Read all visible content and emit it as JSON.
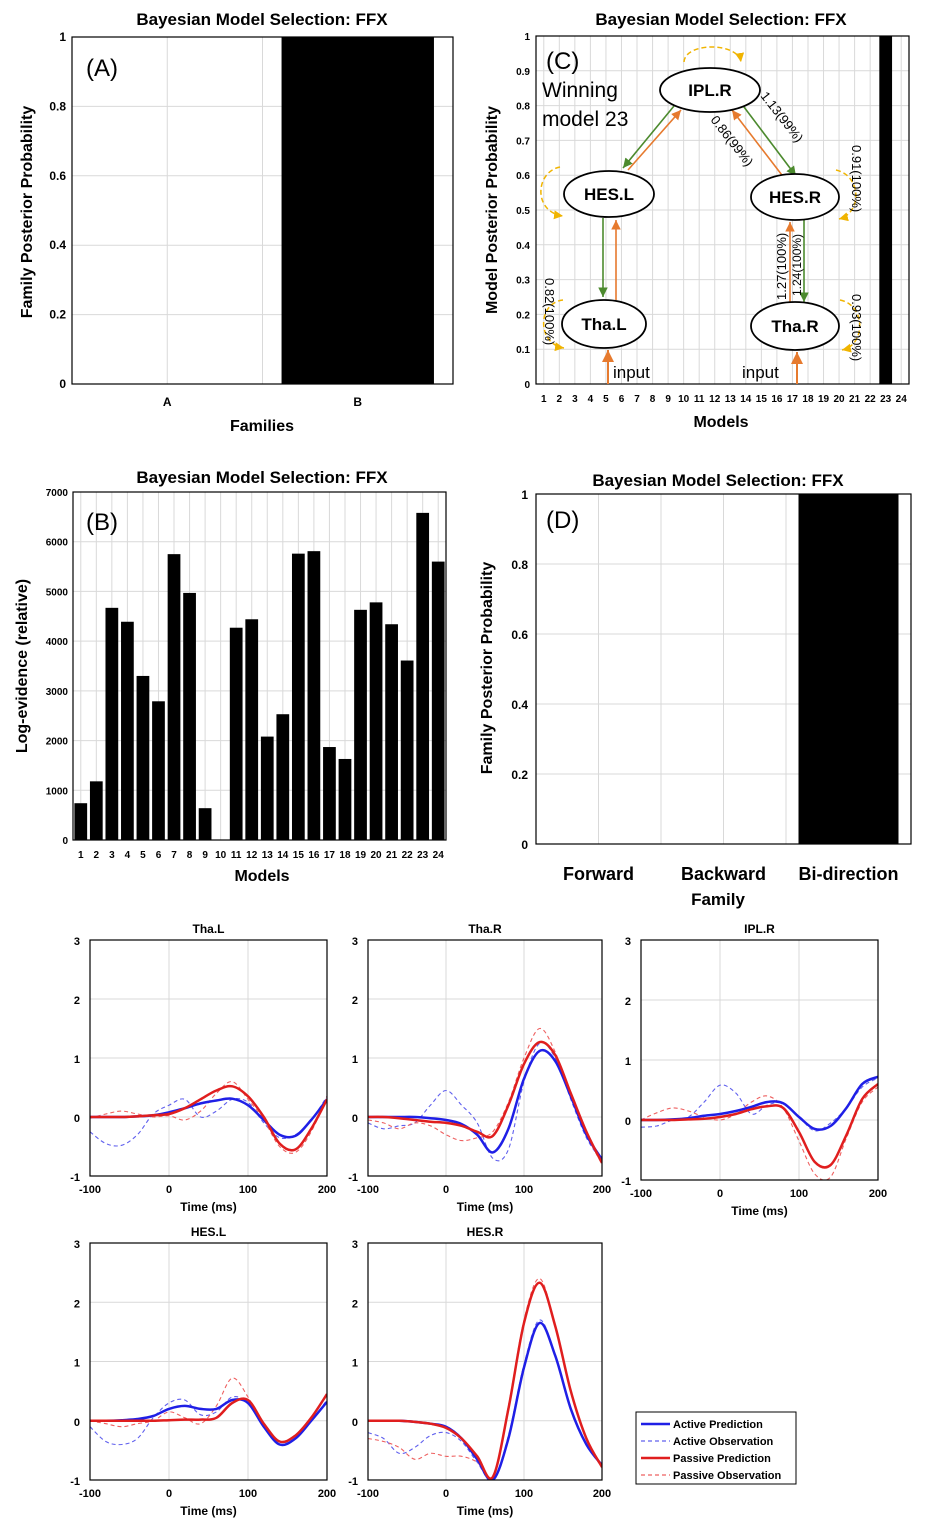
{
  "panelA": {
    "title": "Bayesian Model Selection: FFX",
    "label": "(A)",
    "ylabel": "Family Posterior Probability",
    "xlabel": "Families"
  },
  "panelB": {
    "title": "Bayesian Model Selection: FFX",
    "label": "(B)",
    "ylabel": "Log-evidence (relative)",
    "xlabel": "Models"
  },
  "panelC": {
    "title": "Bayesian Model Selection: FFX",
    "label": "(C)",
    "ylabel": "Model Posterior Probability",
    "xlabel": "Models",
    "winning_line1": "Winning",
    "winning_line2": "model 23",
    "nodes": {
      "ipl_r": "IPL.R",
      "hes_l": "HES.L",
      "hes_r": "HES.R",
      "tha_l": "Tha.L",
      "tha_r": "Tha.R"
    },
    "edge_labels": {
      "ipl_to_hesr": "1.13(99%)",
      "hesr_to_ipl": "0.86(99%)",
      "hesr_self": "0.91(100%)",
      "thar_to_hesr": "1.27(100%)",
      "hesr_to_thar": "1.24(100%)",
      "thar_self": "0.93(100%)",
      "thal_self": "0.82(100%)"
    },
    "input_label": "input"
  },
  "panelD": {
    "title": "Bayesian Model Selection: FFX",
    "label": "(D)",
    "ylabel": "Family Posterior Probability",
    "xlabel": "Family"
  },
  "timeseries": {
    "xlabel": "Time (ms)",
    "legend": [
      "Active Prediction",
      "Active Observation",
      "Passive Prediction",
      "Passive Observation"
    ]
  },
  "colors": {
    "active": "#1f1fe6",
    "active_obs": "#6060ee",
    "passive": "#e01e1e",
    "passive_obs": "#ee6060",
    "forward_arrow": "#e67a2e",
    "backward_arrow": "#4c8a2e",
    "self_loop": "#f0b400"
  },
  "chart_data": [
    {
      "type": "bar",
      "title": "Bayesian Model Selection: FFX",
      "xlabel": "Families",
      "ylabel": "Family Posterior Probability",
      "categories": [
        "A",
        "B"
      ],
      "values": [
        0,
        1
      ],
      "ylim": [
        0,
        1
      ],
      "yticks": [
        0,
        0.2,
        0.4,
        0.6,
        0.8,
        1
      ],
      "grid": true
    },
    {
      "type": "bar",
      "title": "Bayesian Model Selection: FFX",
      "xlabel": "Models",
      "ylabel": "Log-evidence (relative)",
      "categories": [
        "1",
        "2",
        "3",
        "4",
        "5",
        "6",
        "7",
        "8",
        "9",
        "10",
        "11",
        "12",
        "13",
        "14",
        "15",
        "16",
        "17",
        "18",
        "19",
        "20",
        "21",
        "22",
        "23",
        "24"
      ],
      "values": [
        740,
        1180,
        4670,
        4390,
        3300,
        2790,
        5750,
        4970,
        640,
        0,
        4270,
        4440,
        2080,
        2530,
        5760,
        5810,
        1870,
        1630,
        4630,
        4780,
        4340,
        3610,
        6580,
        5600
      ],
      "ylim": [
        0,
        7000
      ],
      "yticks": [
        0,
        1000,
        2000,
        3000,
        4000,
        5000,
        6000,
        7000
      ],
      "grid": true
    },
    {
      "type": "bar",
      "title": "Bayesian Model Selection: FFX",
      "xlabel": "Models",
      "ylabel": "Model Posterior Probability",
      "categories": [
        "1",
        "2",
        "3",
        "4",
        "5",
        "6",
        "7",
        "8",
        "9",
        "10",
        "11",
        "12",
        "13",
        "14",
        "15",
        "16",
        "17",
        "18",
        "19",
        "20",
        "21",
        "22",
        "23",
        "24"
      ],
      "values": [
        0,
        0,
        0,
        0,
        0,
        0,
        0,
        0,
        0,
        0,
        0,
        0,
        0,
        0,
        0,
        0,
        0,
        0,
        0,
        0,
        0,
        0,
        1,
        0
      ],
      "ylim": [
        0,
        1
      ],
      "yticks": [
        0,
        0.1,
        0.2,
        0.3,
        0.4,
        0.5,
        0.6,
        0.7,
        0.8,
        0.9,
        1
      ],
      "grid": true
    },
    {
      "type": "bar",
      "title": "Bayesian Model Selection: FFX",
      "xlabel": "Family",
      "ylabel": "Family Posterior Probability",
      "categories": [
        "Forward",
        "Backward",
        "Bi-direction"
      ],
      "values": [
        0,
        0,
        1
      ],
      "ylim": [
        0,
        1
      ],
      "yticks": [
        0,
        0.2,
        0.4,
        0.6,
        0.8,
        1
      ],
      "grid": true
    },
    {
      "type": "line",
      "title": "Tha.L",
      "xlabel": "Time (ms)",
      "x": [
        -100,
        -80,
        -60,
        -40,
        -20,
        0,
        20,
        40,
        60,
        80,
        100,
        120,
        140,
        160,
        180,
        200
      ],
      "xlim": [
        -100,
        200
      ],
      "ylim": [
        -1,
        3
      ],
      "series": [
        {
          "name": "Active Prediction",
          "values": [
            0,
            0,
            0,
            0.01,
            0.03,
            0.08,
            0.15,
            0.23,
            0.28,
            0.31,
            0.2,
            -0.05,
            -0.3,
            -0.32,
            -0.05,
            0.3
          ]
        },
        {
          "name": "Active Observation",
          "values": [
            -0.25,
            -0.45,
            -0.48,
            -0.3,
            0.05,
            0.2,
            0.3,
            0.0,
            0.1,
            0.3,
            0.25,
            -0.1,
            -0.35,
            -0.3,
            -0.05,
            0.35
          ]
        },
        {
          "name": "Passive Prediction",
          "values": [
            0,
            0,
            0,
            0.01,
            0.03,
            0.05,
            0.15,
            0.3,
            0.45,
            0.52,
            0.35,
            0.0,
            -0.45,
            -0.55,
            -0.2,
            0.3
          ]
        },
        {
          "name": "Passive Observation",
          "values": [
            -0.02,
            0.05,
            0.1,
            0.05,
            0.0,
            0.02,
            -0.05,
            0.1,
            0.4,
            0.6,
            0.3,
            -0.05,
            -0.5,
            -0.6,
            -0.25,
            0.35
          ]
        }
      ]
    },
    {
      "type": "line",
      "title": "Tha.R",
      "xlabel": "Time (ms)",
      "x": [
        -100,
        -80,
        -60,
        -40,
        -20,
        0,
        20,
        40,
        60,
        80,
        100,
        120,
        140,
        160,
        180,
        200
      ],
      "xlim": [
        -100,
        200
      ],
      "ylim": [
        -1,
        3
      ],
      "series": [
        {
          "name": "Active Prediction",
          "values": [
            0,
            0,
            0,
            0,
            -0.02,
            -0.05,
            -0.12,
            -0.3,
            -0.6,
            -0.2,
            0.65,
            1.12,
            0.95,
            0.35,
            -0.3,
            -0.72
          ]
        },
        {
          "name": "Active Observation",
          "values": [
            -0.1,
            -0.2,
            -0.15,
            -0.1,
            0.2,
            0.45,
            0.2,
            -0.1,
            -0.7,
            -0.55,
            0.6,
            1.25,
            1.0,
            0.3,
            -0.35,
            -0.75
          ]
        },
        {
          "name": "Passive Prediction",
          "values": [
            0,
            0,
            -0.02,
            -0.05,
            -0.08,
            -0.1,
            -0.15,
            -0.25,
            -0.32,
            0.2,
            0.9,
            1.27,
            1.05,
            0.4,
            -0.25,
            -0.78
          ]
        },
        {
          "name": "Passive Observation",
          "values": [
            -0.05,
            -0.1,
            -0.2,
            -0.1,
            -0.15,
            -0.3,
            -0.4,
            -0.35,
            -0.25,
            0.25,
            1.0,
            1.5,
            1.1,
            0.35,
            -0.3,
            -0.8
          ]
        }
      ]
    },
    {
      "type": "line",
      "title": "IPL.R",
      "xlabel": "Time (ms)",
      "x": [
        -100,
        -80,
        -60,
        -40,
        -20,
        0,
        20,
        40,
        60,
        80,
        100,
        120,
        140,
        160,
        180,
        200
      ],
      "xlim": [
        -100,
        200
      ],
      "ylim": [
        -1,
        3
      ],
      "series": [
        {
          "name": "Active Prediction",
          "values": [
            0,
            0,
            0.01,
            0.03,
            0.07,
            0.1,
            0.15,
            0.22,
            0.3,
            0.28,
            0.05,
            -0.15,
            -0.1,
            0.2,
            0.6,
            0.72
          ]
        },
        {
          "name": "Active Observation",
          "values": [
            -0.12,
            -0.1,
            0.0,
            0.05,
            0.3,
            0.58,
            0.45,
            0.1,
            0.25,
            0.28,
            0.05,
            -0.18,
            -0.05,
            0.2,
            0.55,
            0.7
          ]
        },
        {
          "name": "Passive Prediction",
          "values": [
            0,
            0,
            0,
            0.01,
            0.02,
            0.05,
            0.1,
            0.18,
            0.23,
            0.2,
            -0.2,
            -0.7,
            -0.75,
            -0.25,
            0.35,
            0.6
          ]
        },
        {
          "name": "Passive Observation",
          "values": [
            0.0,
            0.12,
            0.2,
            0.15,
            0.05,
            0.0,
            0.1,
            0.3,
            0.4,
            0.2,
            -0.35,
            -0.9,
            -0.95,
            -0.3,
            0.3,
            0.55
          ]
        }
      ]
    },
    {
      "type": "line",
      "title": "HES.L",
      "xlabel": "Time (ms)",
      "x": [
        -100,
        -80,
        -60,
        -40,
        -20,
        0,
        20,
        40,
        60,
        80,
        100,
        120,
        140,
        160,
        180,
        200
      ],
      "xlim": [
        -100,
        200
      ],
      "ylim": [
        -1,
        3
      ],
      "series": [
        {
          "name": "Active Prediction",
          "values": [
            0,
            0,
            0.01,
            0.03,
            0.08,
            0.2,
            0.25,
            0.2,
            0.2,
            0.35,
            0.3,
            -0.1,
            -0.4,
            -0.3,
            0.0,
            0.32
          ]
        },
        {
          "name": "Active Observation",
          "values": [
            -0.1,
            -0.35,
            -0.4,
            -0.3,
            0.05,
            0.3,
            0.35,
            0.1,
            0.15,
            0.4,
            0.3,
            -0.1,
            -0.35,
            -0.3,
            0.0,
            0.35
          ]
        },
        {
          "name": "Passive Prediction",
          "values": [
            0,
            0,
            0,
            0,
            0,
            0.01,
            0.02,
            0.02,
            0.05,
            0.3,
            0.35,
            -0.05,
            -0.35,
            -0.25,
            0.05,
            0.45
          ]
        },
        {
          "name": "Passive Observation",
          "values": [
            0.0,
            -0.05,
            -0.1,
            -0.05,
            0.0,
            0.15,
            0.05,
            -0.05,
            0.25,
            0.72,
            0.4,
            -0.1,
            -0.35,
            -0.25,
            0.05,
            0.45
          ]
        }
      ]
    },
    {
      "type": "line",
      "title": "HES.R",
      "xlabel": "Time (ms)",
      "x": [
        -100,
        -80,
        -60,
        -40,
        -20,
        0,
        20,
        40,
        60,
        80,
        100,
        120,
        140,
        160,
        180,
        200
      ],
      "xlim": [
        -100,
        200
      ],
      "ylim": [
        -1,
        3
      ],
      "series": [
        {
          "name": "Active Prediction",
          "values": [
            0,
            0,
            0,
            -0.02,
            -0.05,
            -0.1,
            -0.3,
            -0.65,
            -1.0,
            -0.3,
            0.9,
            1.65,
            1.1,
            0.2,
            -0.4,
            -0.75
          ]
        },
        {
          "name": "Active Observation",
          "values": [
            -0.2,
            -0.3,
            -0.55,
            -0.45,
            -0.25,
            -0.2,
            -0.35,
            -0.7,
            -1.0,
            -0.25,
            0.95,
            1.7,
            1.1,
            0.2,
            -0.4,
            -0.78
          ]
        },
        {
          "name": "Passive Prediction",
          "values": [
            0,
            0,
            0,
            -0.02,
            -0.05,
            -0.12,
            -0.3,
            -0.6,
            -0.95,
            0.2,
            1.65,
            2.33,
            1.6,
            0.5,
            -0.3,
            -0.78
          ]
        },
        {
          "name": "Passive Observation",
          "values": [
            -0.3,
            -0.35,
            -0.45,
            -0.65,
            -0.55,
            -0.6,
            -0.6,
            -0.7,
            -0.95,
            0.25,
            1.7,
            2.4,
            1.6,
            0.5,
            -0.3,
            -0.8
          ]
        }
      ]
    }
  ]
}
